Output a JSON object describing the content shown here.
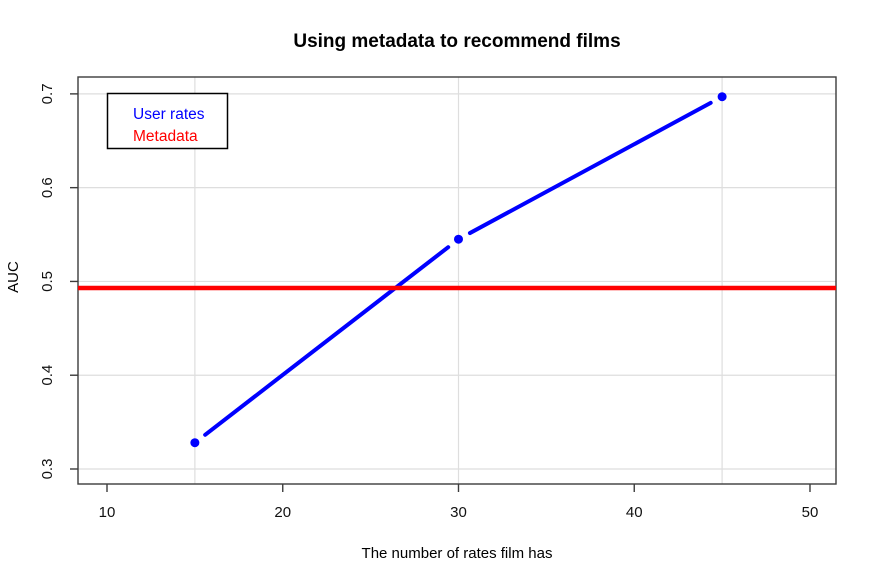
{
  "title": "Using metadata to recommend films",
  "chart_data": {
    "type": "line",
    "title": "Using metadata to recommend films",
    "xlabel": "The number of rates film has",
    "ylabel": "AUC",
    "xlim": [
      8.35,
      51.48
    ],
    "ylim": [
      0.284,
      0.718
    ],
    "x_ticks": [
      10,
      20,
      30,
      40,
      50
    ],
    "y_ticks": [
      0.3,
      0.4,
      0.5,
      0.6,
      0.7
    ],
    "grid": {
      "on": true,
      "color": "#dedede",
      "vertical_x": [
        15,
        30,
        45
      ],
      "horizontal_y": [
        0.3,
        0.4,
        0.5,
        0.6,
        0.7
      ]
    },
    "series": [
      {
        "name": "User rates",
        "style": "line-points",
        "color": "#0000ff",
        "x": [
          15,
          30,
          45
        ],
        "y": [
          0.328,
          0.545,
          0.697
        ]
      },
      {
        "name": "Metadata",
        "style": "hline",
        "color": "#ff0000",
        "y": 0.493
      }
    ],
    "legend": {
      "position": "top-left",
      "entries": [
        {
          "label": "User rates",
          "color": "#0000ff"
        },
        {
          "label": "Metadata",
          "color": "#ff0000"
        }
      ]
    }
  },
  "colors": {
    "background": "#ffffff",
    "plot_border": "#3c3c3c",
    "grid": "#dedede",
    "series_user_rates": "#0000ff",
    "series_metadata": "#ff0000",
    "text": "#000000"
  }
}
